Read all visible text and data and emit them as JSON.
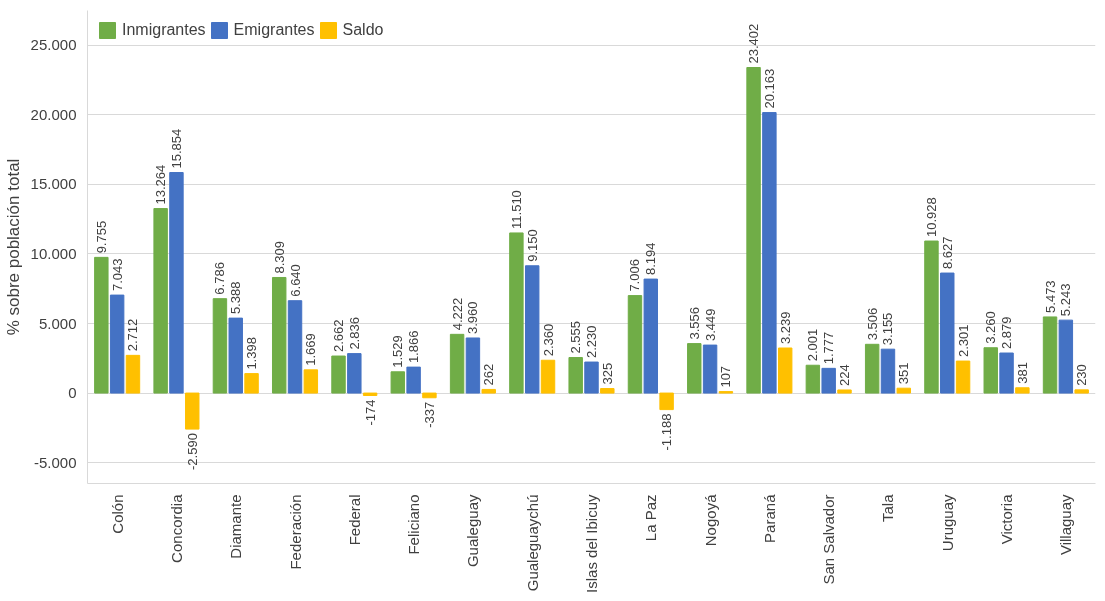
{
  "chart_data": {
    "type": "bar",
    "ylabel": "% sobre población total",
    "categories": [
      "Colón",
      "Concordia",
      "Diamante",
      "Federación",
      "Federal",
      "Feliciano",
      "Gualeguay",
      "Gualeguaychú",
      "Islas del Ibicuy",
      "La Paz",
      "Nogoyá",
      "Paraná",
      "San Salvador",
      "Tala",
      "Uruguay",
      "Victoria",
      "Villaguay"
    ],
    "series": [
      {
        "name": "Inmigrantes",
        "color": "#70ad47",
        "values": [
          9755,
          13264,
          6786,
          8309,
          2662,
          1529,
          4222,
          11510,
          2555,
          7006,
          3556,
          23402,
          2001,
          3506,
          10928,
          3260,
          5473
        ],
        "value_labels": [
          "9.755",
          "13.264",
          "6.786",
          "8.309",
          "2.662",
          "1.529",
          "4.222",
          "11.510",
          "2.555",
          "7.006",
          "3.556",
          "23.402",
          "2.001",
          "3.506",
          "10.928",
          "3.260",
          "5.473"
        ]
      },
      {
        "name": "Emigrantes",
        "color": "#4472c4",
        "values": [
          7043,
          15854,
          5388,
          6640,
          2836,
          1866,
          3960,
          9150,
          2230,
          8194,
          3449,
          20163,
          1777,
          3155,
          8627,
          2879,
          5243
        ],
        "value_labels": [
          "7.043",
          "15.854",
          "5.388",
          "6.640",
          "2.836",
          "1.866",
          "3.960",
          "9.150",
          "2.230",
          "8.194",
          "3.449",
          "20.163",
          "1.777",
          "3.155",
          "8.627",
          "2.879",
          "5.243"
        ]
      },
      {
        "name": "Saldo",
        "color": "#ffc000",
        "values": [
          2712,
          -2590,
          1398,
          1669,
          -174,
          -337,
          262,
          2360,
          325,
          -1188,
          107,
          3239,
          224,
          351,
          2301,
          381,
          230
        ],
        "value_labels": [
          "2.712",
          "-2.590",
          "1.398",
          "1.669",
          "-174",
          "-337",
          "262",
          "2.360",
          "325",
          "-1.188",
          "107",
          "3.239",
          "224",
          "351",
          "2.301",
          "381",
          "230"
        ]
      }
    ],
    "ylim": [
      -6500,
      27500
    ],
    "yticks": [
      {
        "value": -5000,
        "label": "-5.000"
      },
      {
        "value": 0,
        "label": "0"
      },
      {
        "value": 5000,
        "label": "5.000"
      },
      {
        "value": 10000,
        "label": "10.000"
      },
      {
        "value": 15000,
        "label": "15.000"
      },
      {
        "value": 20000,
        "label": "20.000"
      },
      {
        "value": 25000,
        "label": "25.000"
      }
    ],
    "grid": "y",
    "legend": "top left"
  }
}
